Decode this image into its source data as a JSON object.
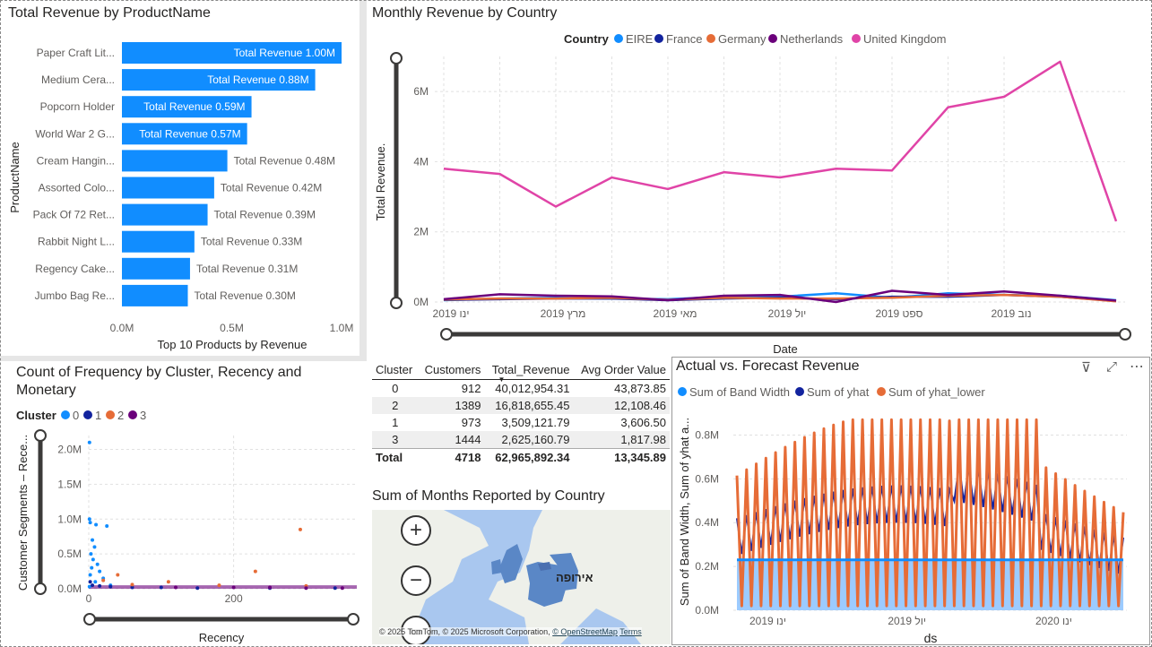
{
  "panels": {
    "top_products": {
      "title": "Total Revenue by ProductName",
      "xlabel": "Top 10 Products by Revenue",
      "ylabel": "ProductName",
      "bar_label_prefix": "Total Revenue"
    },
    "monthly": {
      "title": "Monthly Revenue by Country",
      "legend_title": "Country",
      "ylabel": "Total Revenue.",
      "xlabel": "Date"
    },
    "scatter": {
      "title": "Count of Frequency by Cluster, Recency and Monetary",
      "legend_title": "Cluster",
      "ylabel": "Customer Segments – Rece...",
      "xlabel": "Recency"
    },
    "table": {
      "headers": [
        "Cluster",
        "Customers",
        "Total_Revenue",
        "Avg Order Value"
      ],
      "rows": [
        [
          "0",
          "912",
          "40,012,954.31",
          "43,873.85"
        ],
        [
          "2",
          "1389",
          "16,818,655.45",
          "12,108.46"
        ],
        [
          "1",
          "973",
          "3,509,121.79",
          "3,606.50"
        ],
        [
          "3",
          "1444",
          "2,625,160.79",
          "1,817.98"
        ]
      ],
      "total": [
        "Total",
        "4718",
        "62,965,892.34",
        "13,345.89"
      ]
    },
    "map": {
      "title": "Sum of Months Reported by Country",
      "region_label": "אירופה",
      "attribution": "© 2025 TomTom, © 2025 Microsoft Corporation,",
      "osm_link": "© OpenStreetMap",
      "terms_link": "Terms",
      "zoom_in": "+",
      "zoom_out": "−"
    },
    "forecast": {
      "title": "Actual vs. Forecast Revenue",
      "ylabel": "Sum of Band Width, Sum of yhat a...",
      "xlabel": "ds"
    }
  },
  "colors": {
    "bar": "#118dff",
    "eire": "#118dff",
    "france": "#12239e",
    "germany": "#e66c37",
    "netherlands": "#6b007b",
    "uk": "#e044a7",
    "cluster0": "#118dff",
    "cluster1": "#12239e",
    "cluster2": "#e66c37",
    "cluster3": "#6b007b",
    "band": "#118dff",
    "yhat": "#12239e",
    "yhat_lower": "#e66c37"
  },
  "chart_data": [
    {
      "type": "bar",
      "orientation": "horizontal",
      "title": "Total Revenue by ProductName",
      "categories": [
        "Paper Craft Lit...",
        "Medium Cera...",
        "Popcorn Holder",
        "World War 2 G...",
        "Cream Hangin...",
        "Assorted Colo...",
        "Pack Of 72 Ret...",
        "Rabbit Night L...",
        "Regency Cake...",
        "Jumbo Bag Re..."
      ],
      "values": [
        1.0,
        0.88,
        0.59,
        0.57,
        0.48,
        0.42,
        0.39,
        0.33,
        0.31,
        0.3
      ],
      "data_labels": [
        "Total Revenue 1.00M",
        "Total Revenue 0.88M",
        "Total Revenue 0.59M",
        "Total Revenue 0.57M",
        "Total Revenue 0.48M",
        "Total Revenue 0.42M",
        "Total Revenue 0.39M",
        "Total Revenue 0.33M",
        "Total Revenue 0.31M",
        "Total Revenue 0.30M"
      ],
      "x_ticks": [
        "0.0M",
        "0.5M",
        "1.0M"
      ],
      "xlim": [
        0,
        1.0
      ],
      "xlabel": "Top 10 Products by Revenue",
      "ylabel": "ProductName"
    },
    {
      "type": "line",
      "title": "Monthly Revenue by Country",
      "x": [
        1,
        2,
        3,
        4,
        5,
        6,
        7,
        8,
        9,
        10,
        11,
        12,
        13
      ],
      "x_ticks": [
        "ינו 2019",
        "מרץ 2019",
        "מאי 2019",
        "יול 2019",
        "ספט 2019",
        "נוב 2019"
      ],
      "x_tick_positions": [
        1,
        3,
        5,
        7,
        9,
        11
      ],
      "y_ticks": [
        "0M",
        "2M",
        "4M",
        "6M"
      ],
      "ylim": [
        0,
        7
      ],
      "series": [
        {
          "name": "EIRE",
          "values": [
            0.05,
            0.1,
            0.12,
            0.1,
            0.08,
            0.15,
            0.15,
            0.25,
            0.12,
            0.25,
            0.2,
            0.18,
            0.05
          ]
        },
        {
          "name": "France",
          "values": [
            0.06,
            0.08,
            0.1,
            0.1,
            0.05,
            0.1,
            0.12,
            0.08,
            0.15,
            0.15,
            0.2,
            0.15,
            0.03
          ]
        },
        {
          "name": "Germany",
          "values": [
            0.07,
            0.1,
            0.1,
            0.12,
            0.06,
            0.12,
            0.1,
            0.1,
            0.12,
            0.18,
            0.2,
            0.15,
            0.02
          ]
        },
        {
          "name": "Netherlands",
          "values": [
            0.08,
            0.22,
            0.18,
            0.16,
            0.05,
            0.18,
            0.2,
            0.0,
            0.32,
            0.2,
            0.3,
            0.18,
            0.04
          ]
        },
        {
          "name": "United Kingdom",
          "values": [
            3.8,
            3.65,
            2.72,
            3.55,
            3.22,
            3.7,
            3.55,
            3.8,
            3.75,
            5.55,
            5.85,
            6.85,
            2.3
          ]
        }
      ],
      "legend_title": "Country",
      "ylabel": "Total Revenue.",
      "xlabel": "Date"
    },
    {
      "type": "scatter",
      "title": "Count of Frequency by Cluster, Recency and Monetary",
      "series": [
        {
          "name": "0",
          "points": [
            [
              1,
              2.1
            ],
            [
              1,
              1.0
            ],
            [
              2,
              0.95
            ],
            [
              10,
              0.92
            ],
            [
              25,
              0.9
            ],
            [
              5,
              0.7
            ],
            [
              8,
              0.6
            ],
            [
              3,
              0.5
            ],
            [
              6,
              0.42
            ],
            [
              12,
              0.35
            ],
            [
              4,
              0.3
            ],
            [
              15,
              0.25
            ],
            [
              2,
              0.2
            ],
            [
              20,
              0.15
            ],
            [
              9,
              0.1
            ],
            [
              30,
              0.05
            ],
            [
              1,
              0.03
            ]
          ]
        },
        {
          "name": "1",
          "points": [
            [
              2,
              0.1
            ],
            [
              5,
              0.05
            ],
            [
              15,
              0.04
            ],
            [
              30,
              0.03
            ],
            [
              60,
              0.02
            ],
            [
              100,
              0.02
            ],
            [
              150,
              0.01
            ],
            [
              250,
              0.01
            ],
            [
              340,
              0.01
            ]
          ]
        },
        {
          "name": "2",
          "points": [
            [
              40,
              0.2
            ],
            [
              20,
              0.12
            ],
            [
              110,
              0.1
            ],
            [
              60,
              0.06
            ],
            [
              230,
              0.25
            ],
            [
              292,
              0.85
            ],
            [
              180,
              0.05
            ],
            [
              300,
              0.04
            ]
          ]
        },
        {
          "name": "3",
          "points": [
            [
              200,
              0.02
            ],
            [
              300,
              0.01
            ],
            [
              350,
              0.01
            ],
            [
              120,
              0.02
            ],
            [
              250,
              0.02
            ]
          ]
        }
      ],
      "x_ticks": [
        "0",
        "200"
      ],
      "xlim": [
        0,
        370
      ],
      "y_ticks": [
        "0.0M",
        "0.5M",
        "1.0M",
        "1.5M",
        "2.0M"
      ],
      "ylim": [
        0,
        2.2
      ],
      "legend_title": "Cluster",
      "ylabel": "Customer Segments – Rece...",
      "xlabel": "Recency"
    },
    {
      "type": "area",
      "title": "Actual vs. Forecast Revenue",
      "x_ticks": [
        "ינו 2019",
        "יול 2019",
        "ינו 2020"
      ],
      "y_ticks": [
        "0.0M",
        "0.2M",
        "0.4M",
        "0.6M",
        "0.8M"
      ],
      "ylim": [
        0,
        0.9
      ],
      "series": [
        {
          "name": "Sum of Band Width",
          "approx_level": 0.23
        },
        {
          "name": "Sum of yhat",
          "approx_range": [
            0.3,
            0.6
          ]
        },
        {
          "name": "Sum of yhat_lower",
          "approx_range": [
            0.0,
            0.87
          ]
        }
      ],
      "ylabel": "Sum of Band Width, Sum of yhat a...",
      "xlabel": "ds"
    }
  ]
}
